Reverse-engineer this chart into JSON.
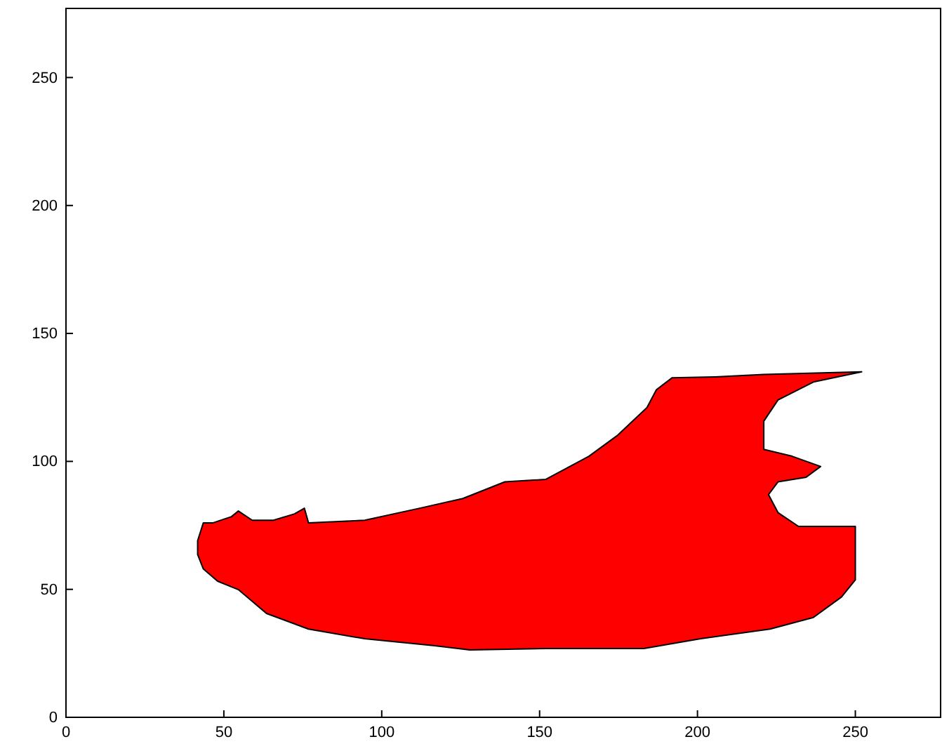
{
  "chart_data": {
    "type": "area",
    "xlim": [
      0,
      277
    ],
    "ylim": [
      0,
      277
    ],
    "xticks": [
      0,
      50,
      100,
      150,
      200,
      250
    ],
    "yticks": [
      0,
      50,
      100,
      150,
      200,
      250
    ],
    "grid": false,
    "series": [
      {
        "color": "#ff0000",
        "x": [
          41.7,
          43.5,
          46.6,
          52.4,
          54.6,
          59,
          65.7,
          72.4,
          75.5,
          76.8,
          94.6,
          112,
          125.7,
          139,
          152,
          165.6,
          174.5,
          184,
          187,
          192,
          205.6,
          221,
          252,
          236.7,
          225.5,
          221,
          221,
          230,
          239,
          234.4,
          225.5,
          222.5,
          225.5,
          232,
          250,
          250,
          245.6,
          236.7,
          223,
          201,
          183,
          152,
          127.9,
          116.8,
          94.6,
          76.8,
          63.5,
          54.6,
          48,
          43.5,
          41.7
        ],
        "values": [
          69,
          76,
          76,
          78.4,
          80.6,
          77,
          77,
          79.5,
          81.7,
          76,
          77,
          81.7,
          85.5,
          92,
          93,
          102,
          110,
          121,
          128,
          132.7,
          133,
          134,
          135,
          131,
          124,
          115.7,
          104.7,
          102,
          98,
          93.8,
          92,
          87,
          80,
          74.6,
          74.6,
          53.7,
          47,
          39,
          34.5,
          30.7,
          26.9,
          26.9,
          26.3,
          28,
          30.7,
          34.5,
          40.6,
          49.9,
          53.2,
          58,
          63.6
        ]
      }
    ]
  }
}
